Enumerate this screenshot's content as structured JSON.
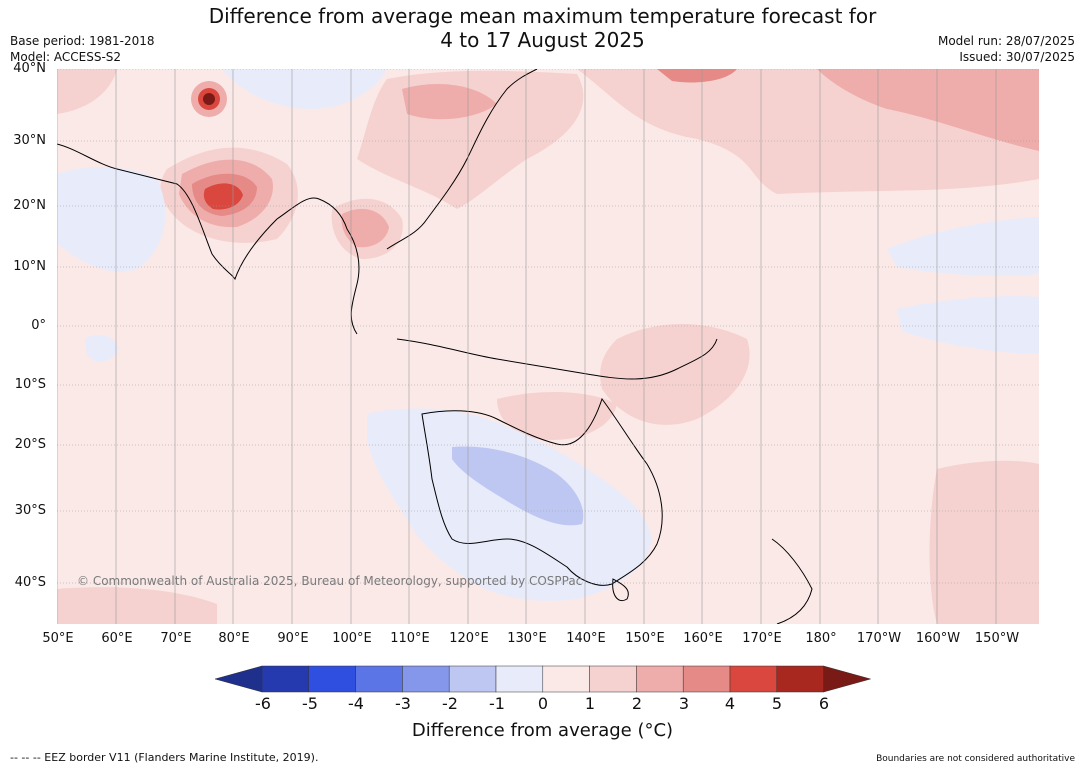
{
  "title_line1": "Difference from average mean maximum temperature forecast for",
  "title_line2": "4 to 17 August 2025",
  "meta_left": {
    "base_period": "Base period: 1981-2018",
    "model": "Model: ACCESS-S2"
  },
  "meta_right": {
    "model_run": "Model run: 28/07/2025",
    "issued": "Issued: 30/07/2025"
  },
  "copyright": "© Commonwealth of Australia 2025, Bureau of Meteorology, supported by COSPPac",
  "lat_labels": [
    "40°N",
    "30°N",
    "20°N",
    "10°N",
    "0°",
    "10°S",
    "20°S",
    "30°S",
    "40°S"
  ],
  "lon_labels": [
    "50°E",
    "60°E",
    "70°E",
    "80°E",
    "90°E",
    "100°E",
    "110°E",
    "120°E",
    "130°E",
    "140°E",
    "150°E",
    "160°E",
    "170°E",
    "180°",
    "170°W",
    "160°W",
    "150°W"
  ],
  "colorbar": {
    "ticks": [
      "-6",
      "-5",
      "-4",
      "-3",
      "-2",
      "-1",
      "0",
      "1",
      "2",
      "3",
      "4",
      "5",
      "6"
    ],
    "colors": [
      "#1f2f8c",
      "#243aae",
      "#2f4fe0",
      "#5b74e6",
      "#8497ea",
      "#bec7f2",
      "#e8ebfa",
      "#fbe9e8",
      "#f5d2d0",
      "#eeadab",
      "#e58a86",
      "#d9473e",
      "#a8271f",
      "#7a1a16"
    ],
    "title": "Difference from average (°C)"
  },
  "footer_left": "--  --  -- EEZ border V11 (Flanders Marine Institute, 2019).",
  "footer_right": "Boundaries are not considered authoritative"
}
